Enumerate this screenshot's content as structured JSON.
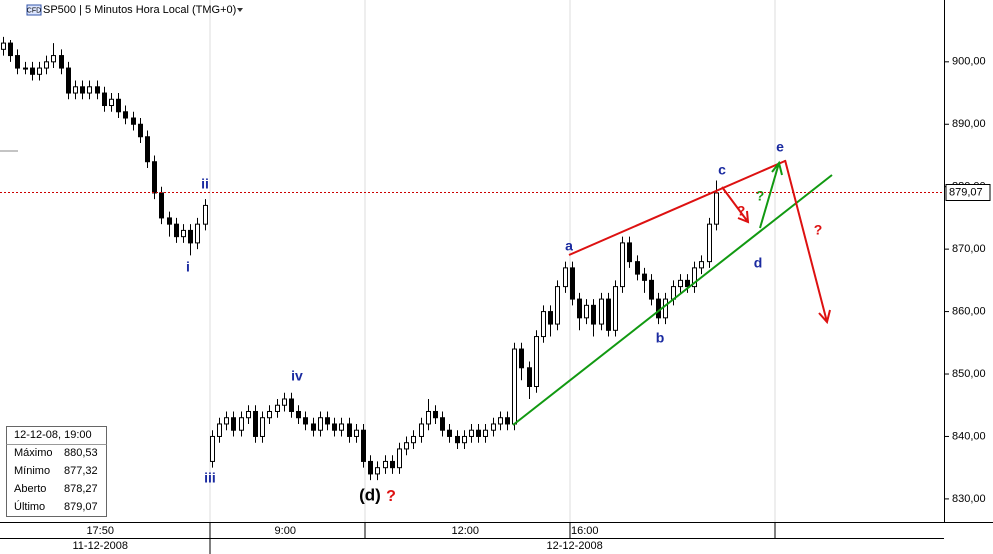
{
  "chart_data": {
    "type": "candlestick",
    "title": "SP500 | 5 Minutos Hora Local (TMG+0)",
    "badge": "CFD",
    "ohlc": [
      [
        902,
        904,
        901,
        903
      ],
      [
        903,
        903.5,
        900,
        901
      ],
      [
        901,
        902,
        898,
        899
      ],
      [
        899,
        900,
        898,
        899
      ],
      [
        899,
        900,
        897,
        898
      ],
      [
        898,
        900,
        897,
        899
      ],
      [
        899,
        901,
        898,
        900
      ],
      [
        900,
        903,
        899,
        901
      ],
      [
        901,
        902,
        898,
        899
      ],
      [
        899,
        900,
        894,
        895
      ],
      [
        895,
        897,
        894,
        896
      ],
      [
        896,
        897,
        894,
        895
      ],
      [
        895,
        897,
        894,
        896
      ],
      [
        896,
        897,
        894,
        895
      ],
      [
        895,
        896,
        892,
        893
      ],
      [
        893,
        895,
        892,
        894
      ],
      [
        894,
        895,
        891,
        892
      ],
      [
        892,
        893,
        890,
        891
      ],
      [
        891,
        892,
        889,
        890
      ],
      [
        890,
        891,
        887,
        888
      ],
      [
        888,
        889,
        883,
        884
      ],
      [
        884,
        885,
        878,
        879
      ],
      [
        879,
        880,
        874,
        875
      ],
      [
        875,
        876,
        872,
        874
      ],
      [
        874,
        875,
        871,
        872
      ],
      [
        872,
        874,
        871,
        873
      ],
      [
        873,
        874,
        869,
        871
      ],
      [
        871,
        875,
        870,
        874
      ],
      [
        874,
        878,
        873,
        877
      ],
      [
        836,
        841,
        835,
        840
      ],
      [
        840,
        843,
        839,
        842
      ],
      [
        842,
        844,
        841,
        843
      ],
      [
        843,
        844,
        840,
        841
      ],
      [
        841,
        844,
        840,
        843
      ],
      [
        843,
        845,
        842,
        844
      ],
      [
        844,
        845,
        839,
        840
      ],
      [
        840,
        844,
        839,
        843
      ],
      [
        843,
        845,
        842,
        844
      ],
      [
        844,
        846,
        843,
        845
      ],
      [
        845,
        847,
        844,
        846
      ],
      [
        846,
        847,
        843,
        844
      ],
      [
        844,
        845,
        842,
        843
      ],
      [
        843,
        844,
        841,
        842
      ],
      [
        842,
        843,
        840,
        841
      ],
      [
        841,
        844,
        840,
        843
      ],
      [
        843,
        844,
        841,
        842
      ],
      [
        842,
        843,
        840,
        841
      ],
      [
        841,
        843,
        840,
        842
      ],
      [
        842,
        843,
        839,
        840
      ],
      [
        840,
        842,
        839,
        841
      ],
      [
        841,
        842,
        835,
        836
      ],
      [
        836,
        837,
        833,
        834
      ],
      [
        834,
        836,
        833,
        835
      ],
      [
        835,
        837,
        834,
        836
      ],
      [
        836,
        837,
        834,
        835
      ],
      [
        835,
        839,
        834,
        838
      ],
      [
        838,
        840,
        837,
        839
      ],
      [
        839,
        841,
        838,
        840
      ],
      [
        840,
        843,
        839,
        842
      ],
      [
        842,
        846,
        841,
        844
      ],
      [
        844,
        845,
        842,
        843
      ],
      [
        843,
        844,
        840,
        841
      ],
      [
        841,
        842,
        839,
        840
      ],
      [
        840,
        841,
        838,
        839
      ],
      [
        839,
        841,
        838,
        840
      ],
      [
        840,
        842,
        839,
        841
      ],
      [
        841,
        842,
        839,
        840
      ],
      [
        840,
        842,
        839,
        841
      ],
      [
        841,
        843,
        840,
        842
      ],
      [
        842,
        844,
        841,
        843
      ],
      [
        843,
        844,
        841,
        842
      ],
      [
        842,
        855,
        841,
        854
      ],
      [
        854,
        855,
        849,
        851
      ],
      [
        851,
        852,
        846,
        848
      ],
      [
        848,
        857,
        847,
        856
      ],
      [
        856,
        861,
        855,
        860
      ],
      [
        860,
        861,
        856,
        858
      ],
      [
        858,
        865,
        857,
        864
      ],
      [
        864,
        868,
        863,
        867
      ],
      [
        867,
        868,
        861,
        862
      ],
      [
        862,
        863,
        857,
        859
      ],
      [
        859,
        862,
        858,
        861
      ],
      [
        861,
        862,
        856,
        858
      ],
      [
        858,
        863,
        857,
        862
      ],
      [
        862,
        863,
        856,
        857
      ],
      [
        857,
        865,
        856,
        864
      ],
      [
        864,
        872,
        863,
        871
      ],
      [
        871,
        872,
        867,
        868
      ],
      [
        868,
        869,
        865,
        866
      ],
      [
        866,
        867,
        863,
        865
      ],
      [
        865,
        866,
        861,
        862
      ],
      [
        862,
        863,
        858,
        859
      ],
      [
        859,
        863,
        858,
        862
      ],
      [
        862,
        865,
        861,
        864
      ],
      [
        864,
        866,
        863,
        865
      ],
      [
        865,
        866,
        863,
        864
      ],
      [
        864,
        868,
        863,
        867
      ],
      [
        867,
        869,
        866,
        868
      ],
      [
        868,
        875,
        867,
        874
      ],
      [
        874,
        881,
        873,
        879
      ]
    ],
    "xlim": [
      -0.42,
      130.7
    ],
    "ylim": [
      826.3,
      909.9
    ],
    "xticks": [
      {
        "value": 13.5,
        "label": "17:50"
      },
      {
        "value": 39.2,
        "label": "9:00"
      },
      {
        "value": 64.2,
        "label": "12:00"
      },
      {
        "value": 80.8,
        "label": "16:00"
      }
    ],
    "date_ticks": [
      {
        "value": 13.5,
        "label": "11-12-2008"
      },
      {
        "value": 79.4,
        "label": "12-12-2008"
      }
    ],
    "yticks": [
      {
        "value": 830,
        "label": "830,00"
      },
      {
        "value": 840,
        "label": "840,00"
      },
      {
        "value": 850,
        "label": "850,00"
      },
      {
        "value": 860,
        "label": "860,00"
      },
      {
        "value": 870,
        "label": "870,00"
      },
      {
        "value": 880,
        "label": "880,00"
      },
      {
        "value": 890,
        "label": "890,00"
      },
      {
        "value": 900,
        "label": "900,00"
      }
    ],
    "last_price": {
      "value": 879.07,
      "label": "879,07"
    },
    "last_price_color": "#cc0000",
    "up_color": "#ffffff",
    "down_color": "#000000",
    "annotations": [
      "ii",
      "i",
      "iii",
      "iv",
      "(d)",
      "?",
      "a",
      "b",
      "c",
      "d",
      "e",
      "?",
      "?",
      "?"
    ],
    "info": {
      "date": "12-12-08, 19:00",
      "rows": [
        [
          "Máximo",
          "880,53"
        ],
        [
          "Mínimo",
          "877,32"
        ],
        [
          "Aberto",
          "878,27"
        ],
        [
          "Último",
          "879,07"
        ]
      ]
    }
  }
}
